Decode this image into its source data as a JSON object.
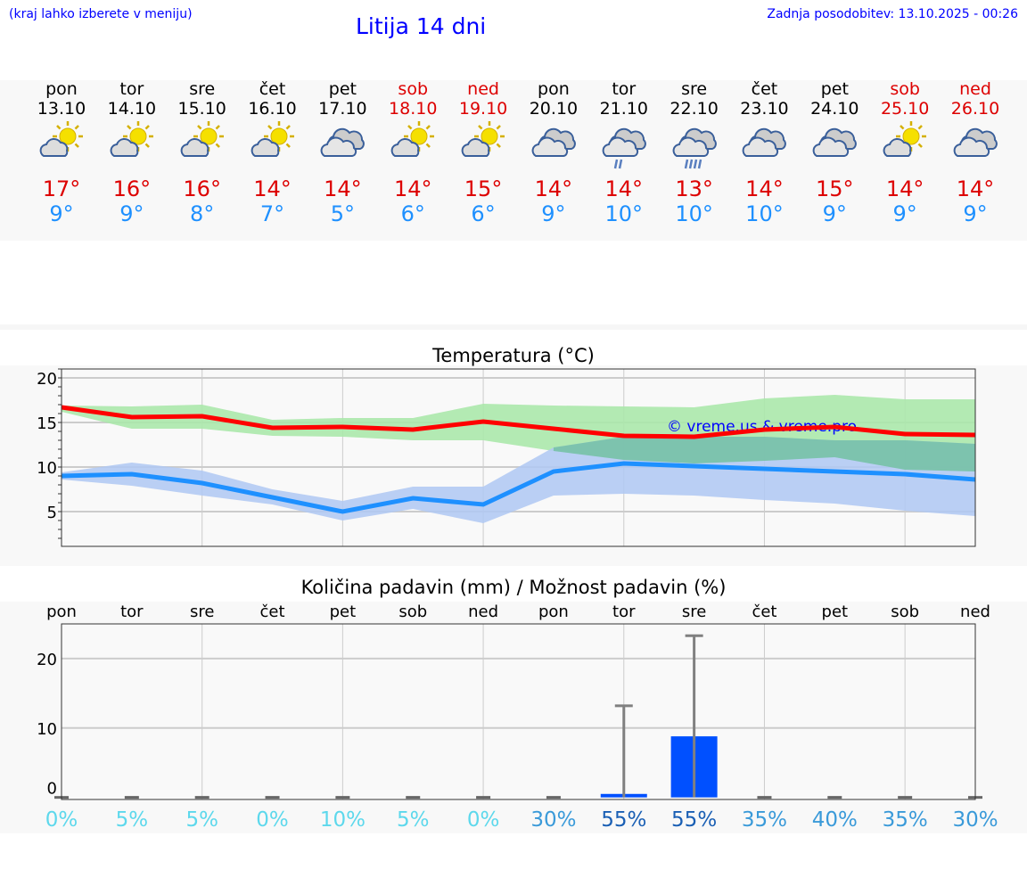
{
  "header": {
    "hint": "(kraj lahko izberete v meniju)",
    "title": "Litija 14 dni",
    "updated": "Zadnja posodobitev: 13.10.2025 - 00:26"
  },
  "colors": {
    "max": "#ff0000",
    "min": "#1e90ff",
    "max_band": "#abe8ab",
    "min_band": "#afc8f3",
    "bar": "#0050ff",
    "weekend": "#dd0000"
  },
  "days": [
    {
      "name": "pon",
      "date": "13.10",
      "icon": "sun-cloud-icon",
      "max": "17°",
      "min": "9°",
      "weekend": false
    },
    {
      "name": "tor",
      "date": "14.10",
      "icon": "sun-cloud-icon",
      "max": "16°",
      "min": "9°",
      "weekend": false
    },
    {
      "name": "sre",
      "date": "15.10",
      "icon": "sun-cloud-icon",
      "max": "16°",
      "min": "8°",
      "weekend": false
    },
    {
      "name": "čet",
      "date": "16.10",
      "icon": "sun-cloud-icon",
      "max": "14°",
      "min": "7°",
      "weekend": false
    },
    {
      "name": "pet",
      "date": "17.10",
      "icon": "cloud-icon",
      "max": "14°",
      "min": "5°",
      "weekend": false
    },
    {
      "name": "sob",
      "date": "18.10",
      "icon": "sun-cloud-icon",
      "max": "14°",
      "min": "6°",
      "weekend": true
    },
    {
      "name": "ned",
      "date": "19.10",
      "icon": "sun-cloud-icon",
      "max": "15°",
      "min": "6°",
      "weekend": true
    },
    {
      "name": "pon",
      "date": "20.10",
      "icon": "cloud-icon",
      "max": "14°",
      "min": "9°",
      "weekend": false
    },
    {
      "name": "tor",
      "date": "21.10",
      "icon": "cloud-rain-icon",
      "max": "14°",
      "min": "10°",
      "weekend": false
    },
    {
      "name": "sre",
      "date": "22.10",
      "icon": "cloud-heavy-rain-icon",
      "max": "13°",
      "min": "10°",
      "weekend": false
    },
    {
      "name": "čet",
      "date": "23.10",
      "icon": "cloud-icon",
      "max": "14°",
      "min": "10°",
      "weekend": false
    },
    {
      "name": "pet",
      "date": "24.10",
      "icon": "cloud-icon",
      "max": "15°",
      "min": "9°",
      "weekend": false
    },
    {
      "name": "sob",
      "date": "25.10",
      "icon": "sun-cloud-icon",
      "max": "14°",
      "min": "9°",
      "weekend": true
    },
    {
      "name": "ned",
      "date": "26.10",
      "icon": "cloud-icon",
      "max": "14°",
      "min": "9°",
      "weekend": true
    }
  ],
  "chart_data": [
    {
      "type": "line",
      "title": "Temperatura (°C)",
      "ylim": [
        1.1,
        21
      ],
      "yticks": [
        5,
        10,
        15,
        20
      ],
      "watermark": "© vreme.us & vreme.pro",
      "series": [
        {
          "name": "max",
          "values": [
            16.7,
            15.6,
            15.7,
            14.4,
            14.5,
            14.2,
            15.1,
            14.3,
            13.5,
            13.4,
            14.2,
            14.5,
            13.7,
            13.6
          ],
          "band_upper": [
            16.9,
            16.8,
            17.0,
            15.3,
            15.5,
            15.5,
            17.1,
            16.9,
            16.8,
            16.7,
            17.7,
            18.1,
            17.6,
            17.6
          ],
          "band_lower": [
            16.2,
            14.3,
            14.3,
            13.5,
            13.4,
            13.0,
            13.0,
            11.8,
            10.8,
            10.4,
            10.7,
            11.1,
            9.7,
            9.5
          ]
        },
        {
          "name": "min",
          "values": [
            9.0,
            9.2,
            8.2,
            6.6,
            5.0,
            6.5,
            5.8,
            9.5,
            10.4,
            10.1,
            9.8,
            9.5,
            9.2,
            8.6
          ],
          "band_upper": [
            9.4,
            10.5,
            9.6,
            7.5,
            6.2,
            7.8,
            7.8,
            12.2,
            13.4,
            13.4,
            13.4,
            13.0,
            13.0,
            12.6
          ],
          "band_lower": [
            8.6,
            7.9,
            6.8,
            5.8,
            4.0,
            5.3,
            3.7,
            6.8,
            7.0,
            6.8,
            6.3,
            5.9,
            5.1,
            4.5
          ]
        }
      ]
    },
    {
      "type": "bar",
      "title": "Količina padavin (mm) / Možnost padavin (%)",
      "ylim": [
        -0.3,
        25
      ],
      "yticks": [
        0,
        10,
        20
      ],
      "categories": [
        "pon",
        "tor",
        "sre",
        "čet",
        "pet",
        "sob",
        "ned",
        "pon",
        "tor",
        "sre",
        "čet",
        "pet",
        "sob",
        "ned"
      ],
      "values": [
        0,
        0,
        0,
        0,
        0,
        0,
        0,
        0,
        0.5,
        8.8,
        0,
        0,
        0,
        0
      ],
      "error_upper": [
        0,
        0,
        0,
        0,
        0,
        0,
        0,
        0,
        13.2,
        23.3,
        0,
        0,
        0,
        0
      ],
      "probability": [
        "0%",
        "5%",
        "5%",
        "0%",
        "10%",
        "5%",
        "0%",
        "30%",
        "55%",
        "55%",
        "35%",
        "40%",
        "35%",
        "30%"
      ],
      "probability_values": [
        0,
        5,
        5,
        0,
        10,
        5,
        0,
        30,
        55,
        55,
        35,
        40,
        35,
        30
      ]
    }
  ]
}
